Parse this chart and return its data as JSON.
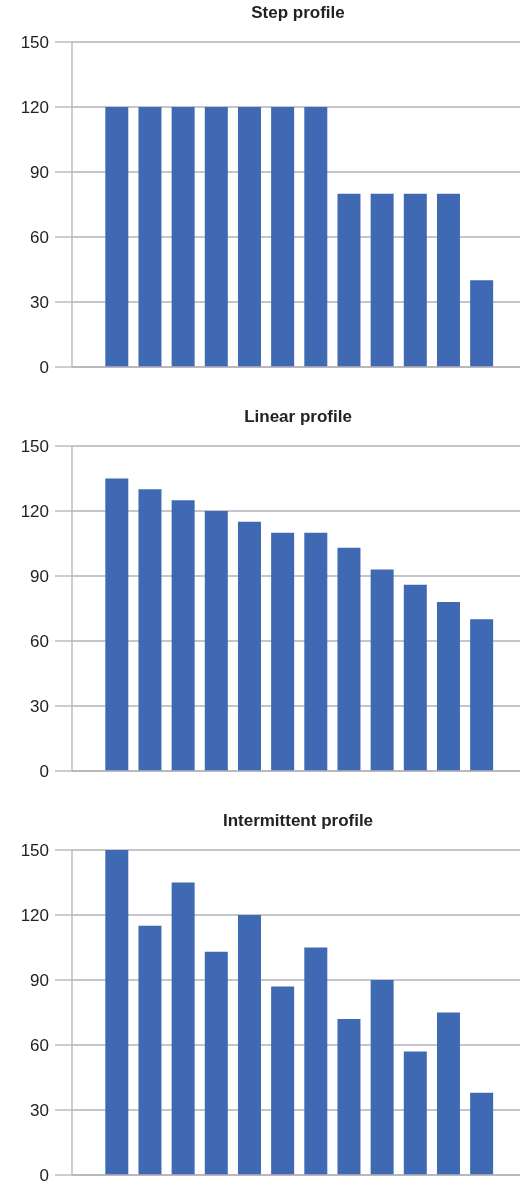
{
  "chart_data": [
    {
      "type": "bar",
      "title": "Step profile",
      "categories": [
        null,
        null,
        null,
        null,
        null,
        null,
        null,
        null,
        null,
        null,
        null,
        null
      ],
      "values": [
        120,
        120,
        120,
        120,
        120,
        120,
        120,
        80,
        80,
        80,
        80,
        40
      ],
      "color": "#4069b4",
      "ylim": [
        0,
        150
      ],
      "yticks": [
        0,
        30,
        60,
        90,
        120,
        150
      ],
      "grid": "y",
      "tick_labels": "y"
    },
    {
      "type": "bar",
      "title": "Linear profile",
      "categories": [
        null,
        null,
        null,
        null,
        null,
        null,
        null,
        null,
        null,
        null,
        null,
        null
      ],
      "values": [
        135,
        130,
        125,
        120,
        115,
        110,
        110,
        103,
        93,
        86,
        78,
        70
      ],
      "color": "#4069b4",
      "ylim": [
        0,
        150
      ],
      "yticks": [
        0,
        30,
        60,
        90,
        120,
        150
      ],
      "grid": "y",
      "tick_labels": "y"
    },
    {
      "type": "bar",
      "title": "Intermittent profile",
      "categories": [
        null,
        null,
        null,
        null,
        null,
        null,
        null,
        null,
        null,
        null,
        null,
        null
      ],
      "values": [
        150,
        115,
        135,
        103,
        120,
        87,
        105,
        72,
        90,
        57,
        75,
        38
      ],
      "color": "#4069b4",
      "ylim": [
        0,
        150
      ],
      "yticks": [
        0,
        30,
        60,
        90,
        120,
        150
      ],
      "grid": "y",
      "tick_labels": "y"
    }
  ]
}
